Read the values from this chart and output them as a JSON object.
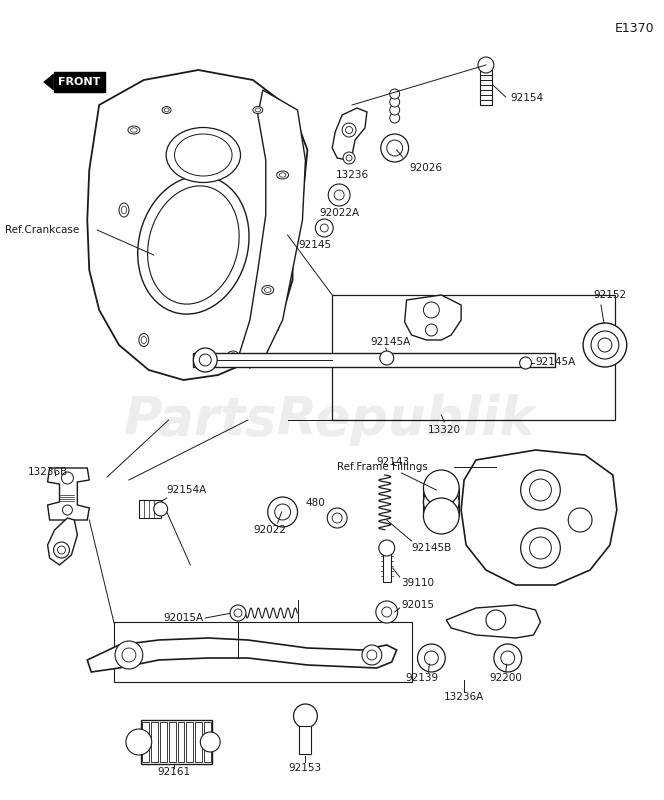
{
  "background_color": "#ffffff",
  "line_color": "#1a1a1a",
  "text_color": "#1a1a1a",
  "diagram_id": "E1370",
  "watermark_text": "PartsRepublik",
  "watermark_color": "#cccccc",
  "watermark_alpha": 0.35,
  "front_label": "FRONT",
  "ref_crankcase": "Ref.Crankcase",
  "ref_frame_fillings": "Ref.Frame Fillings",
  "figsize": [
    6.64,
    8.0
  ],
  "dpi": 100
}
